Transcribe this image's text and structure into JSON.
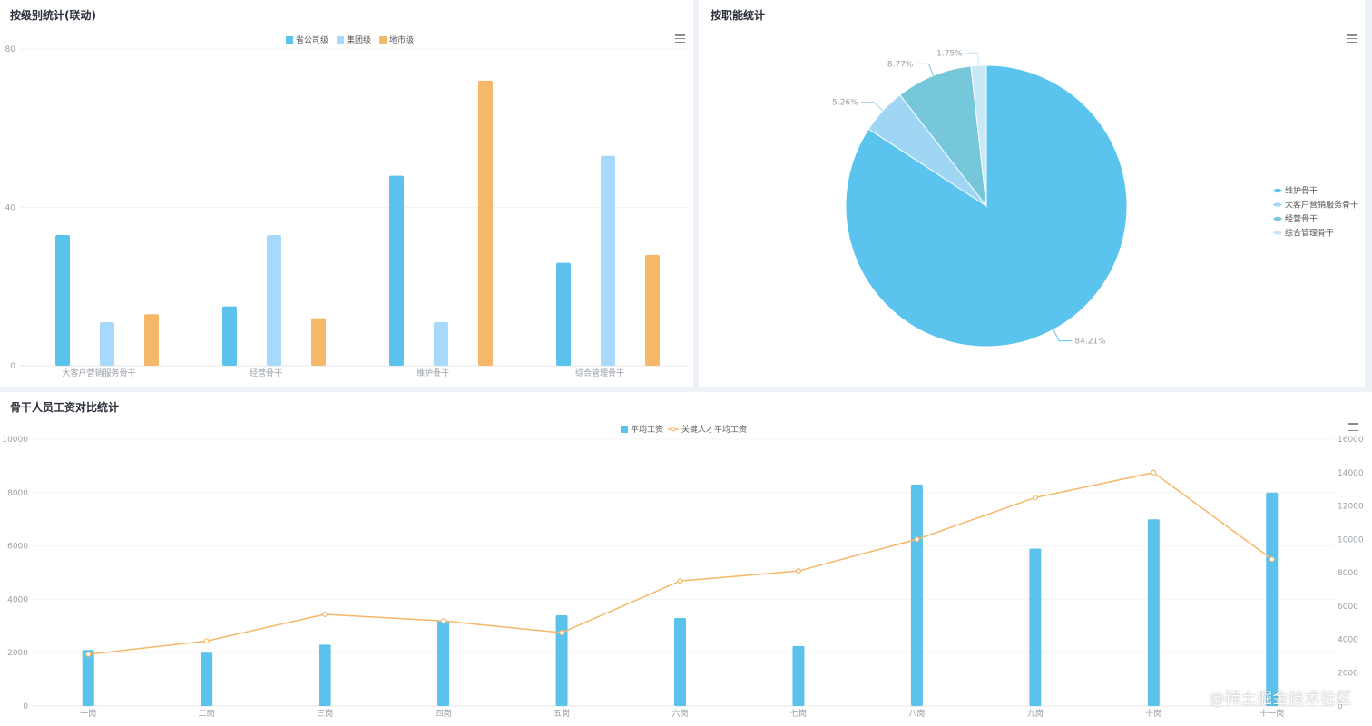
{
  "panels": {
    "level_title": "按级别统计(联动)",
    "function_title": "按职能统计",
    "salary_title": "骨干人员工资对比统计"
  },
  "watermark": "@稀土掘金技术社区",
  "chart_data": [
    {
      "id": "level",
      "type": "bar",
      "title": "按级别统计(联动)",
      "categories": [
        "大客户营销服务骨干",
        "经营骨干",
        "维护骨干",
        "综合管理骨干"
      ],
      "series": [
        {
          "name": "省公司级",
          "color": "#5bc2ec",
          "values": [
            33,
            15,
            48,
            26
          ]
        },
        {
          "name": "集团级",
          "color": "#a8d8fb",
          "values": [
            11,
            33,
            11,
            53
          ]
        },
        {
          "name": "地市级",
          "color": "#f5b768",
          "values": [
            13,
            12,
            72,
            28
          ]
        }
      ],
      "yticks": [
        0,
        40,
        80
      ],
      "ylim": [
        0,
        80
      ]
    },
    {
      "id": "function",
      "type": "pie",
      "title": "按职能统计",
      "slices": [
        {
          "name": "维护骨干",
          "value": 84.21,
          "label": "84.21%",
          "color": "#5ac4ef"
        },
        {
          "name": "大客户营销服务骨干",
          "value": 5.26,
          "label": "5.26%",
          "color": "#9fd6f4"
        },
        {
          "name": "经营骨干",
          "value": 8.77,
          "label": "8.77%",
          "color": "#75c7d9"
        },
        {
          "name": "综合管理骨干",
          "value": 1.75,
          "label": "1.75%",
          "color": "#c8e8f8"
        }
      ],
      "legend": [
        "维护骨干",
        "大客户营销服务骨干",
        "经营骨干",
        "综合管理骨干"
      ]
    },
    {
      "id": "salary",
      "type": "bar",
      "title": "骨干人员工资对比统计",
      "categories": [
        "一岗",
        "二岗",
        "三岗",
        "四岗",
        "五岗",
        "六岗",
        "七岗",
        "八岗",
        "九岗",
        "十岗",
        "十一岗"
      ],
      "bar_series": {
        "name": "平均工资",
        "color": "#5bc2ec",
        "values": [
          2100,
          2000,
          2300,
          3200,
          3400,
          3300,
          2250,
          8300,
          5900,
          7000,
          8000
        ]
      },
      "line_series": {
        "name": "关键人才平均工资",
        "color": "#f5b768",
        "values": [
          3100,
          3900,
          5500,
          5100,
          4400,
          7500,
          8100,
          10000,
          12500,
          14000,
          8800
        ]
      },
      "y_left": {
        "ticks": [
          0,
          2000,
          4000,
          6000,
          8000,
          10000
        ],
        "lim": [
          0,
          10000
        ]
      },
      "y_right": {
        "ticks": [
          0,
          2000,
          4000,
          6000,
          8000,
          10000,
          12000,
          14000,
          16000
        ],
        "lim": [
          0,
          16000
        ]
      }
    }
  ]
}
